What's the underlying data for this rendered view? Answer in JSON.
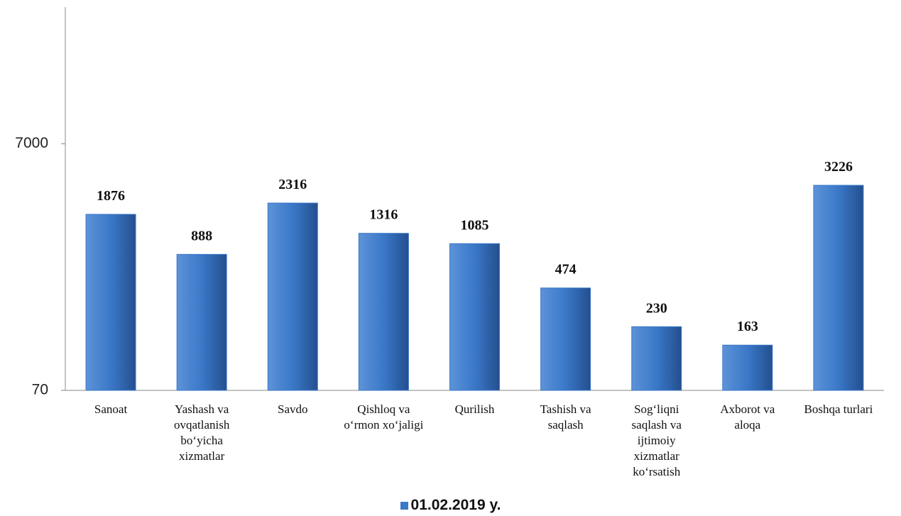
{
  "chart_data": {
    "type": "bar",
    "categories": [
      "Sanoat",
      "Yashash va ovqatlanish bo‘yicha xizmatlar",
      "Savdo",
      "Qishloq va o‘rmon xo‘jaligi",
      "Qurilish",
      "Tashish va saqlash",
      "Sog‘liqni saqlash va ijtimoiy xizmatlar ko‘rsatish",
      "Axborot va aloqa",
      "Boshqa turlari"
    ],
    "series": [
      {
        "name": "01.02.2019 y.",
        "color": "#3a78c8",
        "values": [
          1876,
          888,
          2316,
          1316,
          1085,
          474,
          230,
          163,
          3226
        ]
      }
    ],
    "ylim": [
      70,
      90000
    ],
    "yticks": [
      70,
      7000
    ],
    "log_scale": true,
    "grid": false
  }
}
